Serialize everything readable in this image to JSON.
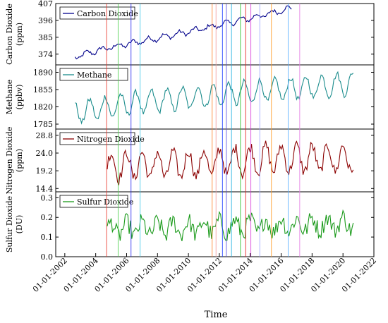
{
  "chart_data": {
    "type": "line",
    "xlabel": "Time",
    "x_axis": {
      "type": "date",
      "range": [
        "2001-06-01",
        "2022-01-01"
      ],
      "tick_labels": [
        "01-01-2002",
        "01-01-2004",
        "01-01-2006",
        "01-01-2008",
        "01-01-2010",
        "01-01-2012",
        "01-01-2014",
        "01-01-2016",
        "01-01-2018",
        "01-01-2020",
        "01-01-2022"
      ],
      "tick_values": [
        "2002-01-01",
        "2004-01-01",
        "2006-01-01",
        "2008-01-01",
        "2010-01-01",
        "2012-01-01",
        "2014-01-01",
        "2016-01-01",
        "2018-01-01",
        "2020-01-01",
        "2022-01-01"
      ]
    },
    "event_lines": [
      {
        "date": "2004-09-15",
        "color": "#e8392f"
      },
      {
        "date": "2005-06-15",
        "color": "#4fd14f"
      },
      {
        "date": "2006-04-15",
        "color": "#2a2af0"
      },
      {
        "date": "2006-11-15",
        "color": "#43c7e8"
      },
      {
        "date": "2011-07-15",
        "color": "#ff7f2a"
      },
      {
        "date": "2011-10-15",
        "color": "#f2a0a0"
      },
      {
        "date": "2012-03-15",
        "color": "#1f3dff"
      },
      {
        "date": "2012-06-15",
        "color": "#5a4fe0"
      },
      {
        "date": "2012-10-15",
        "color": "#1fb0e0"
      },
      {
        "date": "2013-05-15",
        "color": "#2ac02a"
      },
      {
        "date": "2013-09-15",
        "color": "#e81f1f"
      },
      {
        "date": "2014-01-15",
        "color": "#d83ad8"
      },
      {
        "date": "2014-08-15",
        "color": "#9ea6ff"
      },
      {
        "date": "2015-05-15",
        "color": "#ff9d2a"
      },
      {
        "date": "2016-06-15",
        "color": "#5ab0ff"
      },
      {
        "date": "2017-03-15",
        "color": "#e67fe6"
      }
    ],
    "panels": [
      {
        "name": "Carbon Dioxide",
        "ylabel": [
          "Carbon Dioxide",
          "(ppm)"
        ],
        "ylim": [
          367,
          407
        ],
        "yticks": [
          374,
          385,
          396,
          407
        ],
        "color": "#00008b",
        "legend": "top-left",
        "start": "2002-09-01",
        "end": "2016-09-01",
        "step_months": 1,
        "trend": [
          [
            2002.67,
            372.0
          ],
          [
            2004.0,
            376.0
          ],
          [
            2005.0,
            378.5
          ],
          [
            2006.0,
            380.5
          ],
          [
            2007.0,
            382.5
          ],
          [
            2008.0,
            384.5
          ],
          [
            2009.0,
            386.5
          ],
          [
            2010.0,
            388.5
          ],
          [
            2011.0,
            390.8
          ],
          [
            2012.0,
            393.0
          ],
          [
            2013.0,
            395.3
          ],
          [
            2014.0,
            397.5
          ],
          [
            2015.0,
            399.8
          ],
          [
            2016.0,
            402.5
          ],
          [
            2016.67,
            404.0
          ]
        ],
        "seasonal_amplitude": 1.6,
        "noise": 1.1
      },
      {
        "name": "Methane",
        "ylabel": [
          "Methane",
          "(ppbv)"
        ],
        "ylim": [
          1775,
          1905
        ],
        "yticks": [
          1785,
          1820,
          1855,
          1890
        ],
        "color": "#1a8c8c",
        "legend": "top-left",
        "start": "2002-09-01",
        "end": "2020-09-01",
        "step_months": 1,
        "trend": [
          [
            2002.67,
            1808
          ],
          [
            2006.0,
            1826
          ],
          [
            2010.0,
            1838
          ],
          [
            2014.0,
            1850
          ],
          [
            2018.0,
            1860
          ],
          [
            2020.67,
            1868
          ]
        ],
        "seasonal_amplitude": 22,
        "noise": 6
      },
      {
        "name": "Nitrogen Dioxide",
        "ylabel": [
          "Nitrogen Dioxide",
          "(ppm)"
        ],
        "ylim": [
          13.5,
          30.5
        ],
        "yticks": [
          14.4,
          19.2,
          24.0,
          28.8
        ],
        "color": "#8b0000",
        "legend": "top-left",
        "start": "2004-10-01",
        "end": "2020-09-01",
        "step_months": 1,
        "trend": [
          [
            2004.75,
            20.5
          ],
          [
            2010.0,
            21.0
          ],
          [
            2015.0,
            22.5
          ],
          [
            2020.67,
            22.5
          ]
        ],
        "seasonal_amplitude": 3.6,
        "noise": 1.6
      },
      {
        "name": "Sulfur Dioxide",
        "ylabel": [
          "Sulfur Dioxide",
          "(DU)"
        ],
        "ylim": [
          0.0,
          0.33
        ],
        "yticks": [
          0.0,
          0.1,
          0.2,
          0.3
        ],
        "color": "#1a9a1a",
        "legend": "top-left",
        "start": "2004-10-01",
        "end": "2020-09-01",
        "step_months": 1,
        "trend": [
          [
            2004.75,
            0.14
          ],
          [
            2012.0,
            0.15
          ],
          [
            2016.0,
            0.16
          ],
          [
            2020.67,
            0.17
          ]
        ],
        "seasonal_amplitude": 0.035,
        "noise": 0.045
      }
    ]
  }
}
